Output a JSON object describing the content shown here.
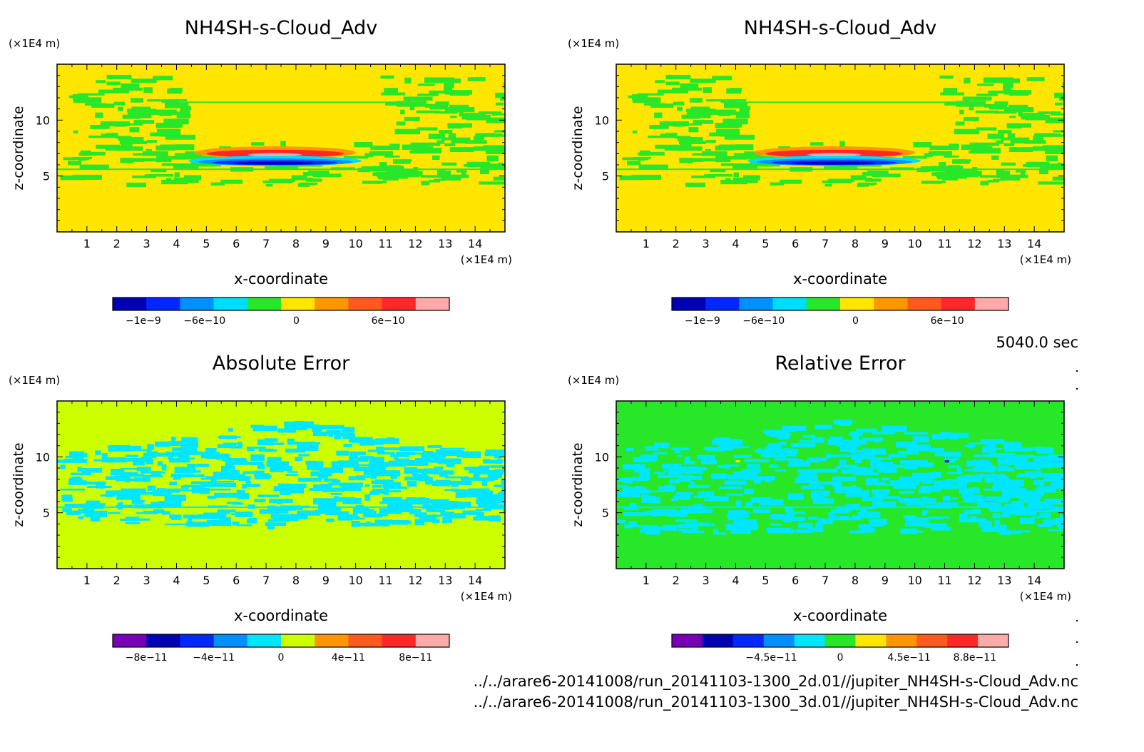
{
  "chart_data": [
    {
      "type": "heatmap",
      "title": "NH4SH-s-Cloud_Adv",
      "xlabel": "x-coordinate",
      "ylabel": "z-coordinate",
      "x_unit": "(×1E4 m)",
      "y_unit": "(×1E4 m)",
      "xlim": [
        0,
        15
      ],
      "ylim": [
        0,
        15
      ],
      "xticks": [
        "1",
        "2",
        "3",
        "4",
        "5",
        "6",
        "7",
        "8",
        "9",
        "10",
        "11",
        "12",
        "13",
        "14"
      ],
      "yticks": [
        "5",
        "10"
      ],
      "background_color": "#ffe600",
      "colorbar": {
        "colors": [
          "#0000b4",
          "#0028ff",
          "#0090ff",
          "#00dcff",
          "#28e628",
          "#ffe600",
          "#ff9600",
          "#ff5a1e",
          "#ff2828",
          "#ffaaaa"
        ],
        "ticks": [
          {
            "value": -1e-09,
            "label": "−1e−9"
          },
          {
            "value": -6e-10,
            "label": "−6e−10"
          },
          {
            "value": 0,
            "label": "0"
          },
          {
            "value": 6e-10,
            "label": "6e−10"
          }
        ],
        "range": [
          -1.2e-09,
          1e-09
        ]
      },
      "features": "green advected streaks left and right above z=5, thin dipole band near z=6-7 around x=5-9 (red top, blue bottom)"
    },
    {
      "type": "heatmap",
      "title": "NH4SH-s-Cloud_Adv",
      "xlabel": "x-coordinate",
      "ylabel": "z-coordinate",
      "x_unit": "(×1E4 m)",
      "y_unit": "(×1E4 m)",
      "xlim": [
        0,
        15
      ],
      "ylim": [
        0,
        15
      ],
      "xticks": [
        "1",
        "2",
        "3",
        "4",
        "5",
        "6",
        "7",
        "8",
        "9",
        "10",
        "11",
        "12",
        "13",
        "14"
      ],
      "yticks": [
        "5",
        "10"
      ],
      "background_color": "#ffe600",
      "colorbar": {
        "colors": [
          "#0000b4",
          "#0028ff",
          "#0090ff",
          "#00dcff",
          "#28e628",
          "#ffe600",
          "#ff9600",
          "#ff5a1e",
          "#ff2828",
          "#ffaaaa"
        ],
        "ticks": [
          {
            "value": -1e-09,
            "label": "−1e−9"
          },
          {
            "value": -6e-10,
            "label": "−6e−10"
          },
          {
            "value": 0,
            "label": "0"
          },
          {
            "value": 6e-10,
            "label": "6e−10"
          }
        ],
        "range": [
          -1.2e-09,
          1e-09
        ]
      }
    },
    {
      "type": "heatmap",
      "title": "Absolute Error",
      "xlabel": "x-coordinate",
      "ylabel": "z-coordinate",
      "x_unit": "(×1E4 m)",
      "y_unit": "(×1E4 m)",
      "xlim": [
        0,
        15
      ],
      "ylim": [
        0,
        15
      ],
      "xticks": [
        "1",
        "2",
        "3",
        "4",
        "5",
        "6",
        "7",
        "8",
        "9",
        "10",
        "11",
        "12",
        "13",
        "14"
      ],
      "yticks": [
        "5",
        "10"
      ],
      "background_color": "#ccff00",
      "colorbar": {
        "colors": [
          "#7800b4",
          "#0000b4",
          "#0028ff",
          "#0090ff",
          "#00e6ff",
          "#ccff00",
          "#ff9600",
          "#ff5a1e",
          "#ff2828",
          "#ffaaaa"
        ],
        "ticks": [
          {
            "value": -8e-11,
            "label": "−8e−11"
          },
          {
            "value": -4e-11,
            "label": "−4e−11"
          },
          {
            "value": 0,
            "label": "0"
          },
          {
            "value": 4e-11,
            "label": "4e−11"
          },
          {
            "value": 8e-11,
            "label": "8e−11"
          }
        ],
        "range": [
          -1e-10,
          1e-10
        ]
      }
    },
    {
      "type": "heatmap",
      "title": "Relative Error",
      "xlabel": "x-coordinate",
      "ylabel": "z-coordinate",
      "x_unit": "(×1E4 m)",
      "y_unit": "(×1E4 m)",
      "xlim": [
        0,
        15
      ],
      "ylim": [
        0,
        15
      ],
      "xticks": [
        "1",
        "2",
        "3",
        "4",
        "5",
        "6",
        "7",
        "8",
        "9",
        "10",
        "11",
        "12",
        "13",
        "14"
      ],
      "yticks": [
        "5",
        "10"
      ],
      "background_color": "#28e628",
      "colorbar": {
        "colors": [
          "#7800b4",
          "#0000b4",
          "#0028ff",
          "#0090ff",
          "#00e6ff",
          "#28e628",
          "#ffe600",
          "#ff9600",
          "#ff5a1e",
          "#ff2828",
          "#ffaaaa"
        ],
        "ticks": [
          {
            "value": -4.5e-11,
            "label": "−4.5e−11"
          },
          {
            "value": 0,
            "label": "0"
          },
          {
            "value": 4.5e-11,
            "label": "4.5e−11"
          },
          {
            "value": 8.8e-11,
            "label": "8.8e−11"
          }
        ],
        "range": [
          -1.1e-10,
          1.1e-10
        ]
      }
    }
  ],
  "time_label": "5040.0 sec",
  "file_paths": [
    "../../arare6-20141008/run_20141103-1300_2d.01//jupiter_NH4SH-s-Cloud_Adv.nc",
    "../../arare6-20141008/run_20141103-1300_3d.01//jupiter_NH4SH-s-Cloud_Adv.nc"
  ]
}
